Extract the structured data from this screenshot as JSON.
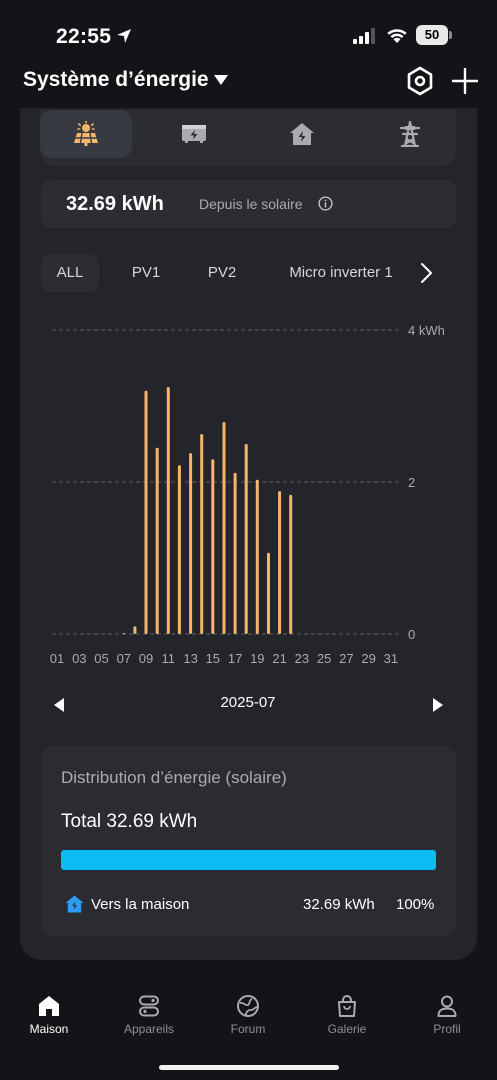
{
  "status_bar": {
    "time": "22:55",
    "battery": "50"
  },
  "header": {
    "title": "Système d’énergie"
  },
  "category_tabs": [
    {
      "icon": "solar-panel-icon",
      "active": true
    },
    {
      "icon": "battery-storage-icon",
      "active": false
    },
    {
      "icon": "home-icon",
      "active": false
    },
    {
      "icon": "power-grid-tower-icon",
      "active": false
    }
  ],
  "summary": {
    "value": "32.69 kWh",
    "label": "Depuis le solaire"
  },
  "pv_tabs": [
    {
      "label": "ALL",
      "active": true
    },
    {
      "label": "PV1",
      "active": false
    },
    {
      "label": "PV2",
      "active": false
    },
    {
      "label": "Micro inverter 1",
      "active": false
    }
  ],
  "chart_data": {
    "type": "bar",
    "x_tick_labels": [
      "01",
      "03",
      "05",
      "07",
      "09",
      "11",
      "13",
      "15",
      "17",
      "19",
      "21",
      "23",
      "25",
      "27",
      "29",
      "31"
    ],
    "y_tick_labels": [
      "4 kWh",
      "2",
      "0"
    ],
    "ylim": [
      0,
      4
    ],
    "grid": true,
    "bar_color": "#f5b66a",
    "x": [
      1,
      2,
      3,
      4,
      5,
      6,
      7,
      8,
      9,
      10,
      11,
      12,
      13,
      14,
      15,
      16,
      17,
      18,
      19,
      20,
      21,
      22,
      23,
      24,
      25,
      26,
      27,
      28,
      29,
      30,
      31
    ],
    "values": [
      0,
      0,
      0,
      0,
      0,
      0,
      0.01,
      0.1,
      3.2,
      2.45,
      3.25,
      2.22,
      2.38,
      2.63,
      2.3,
      2.79,
      2.12,
      2.5,
      2.03,
      1.07,
      1.88,
      1.83,
      0,
      0,
      0,
      0,
      0,
      0,
      0,
      0,
      0
    ]
  },
  "month_nav": {
    "label": "2025-07"
  },
  "distribution": {
    "title": "Distribution d’énergie (solaire)",
    "total": "Total 32.69 kWh",
    "bar_fraction": 1.0,
    "bar_color": "#0bbdf3",
    "row_label": "Vers la maison",
    "row_kwh": "32.69 kWh",
    "row_percent": "100%"
  },
  "bottom_nav": [
    {
      "label": "Maison",
      "icon": "home-icon",
      "active": true
    },
    {
      "label": "Appareils",
      "icon": "devices-icon",
      "active": false
    },
    {
      "label": "Forum",
      "icon": "globe-icon",
      "active": false
    },
    {
      "label": "Galerie",
      "icon": "shopping-bag-icon",
      "active": false
    },
    {
      "label": "Profil",
      "icon": "profile-icon",
      "active": false
    }
  ]
}
